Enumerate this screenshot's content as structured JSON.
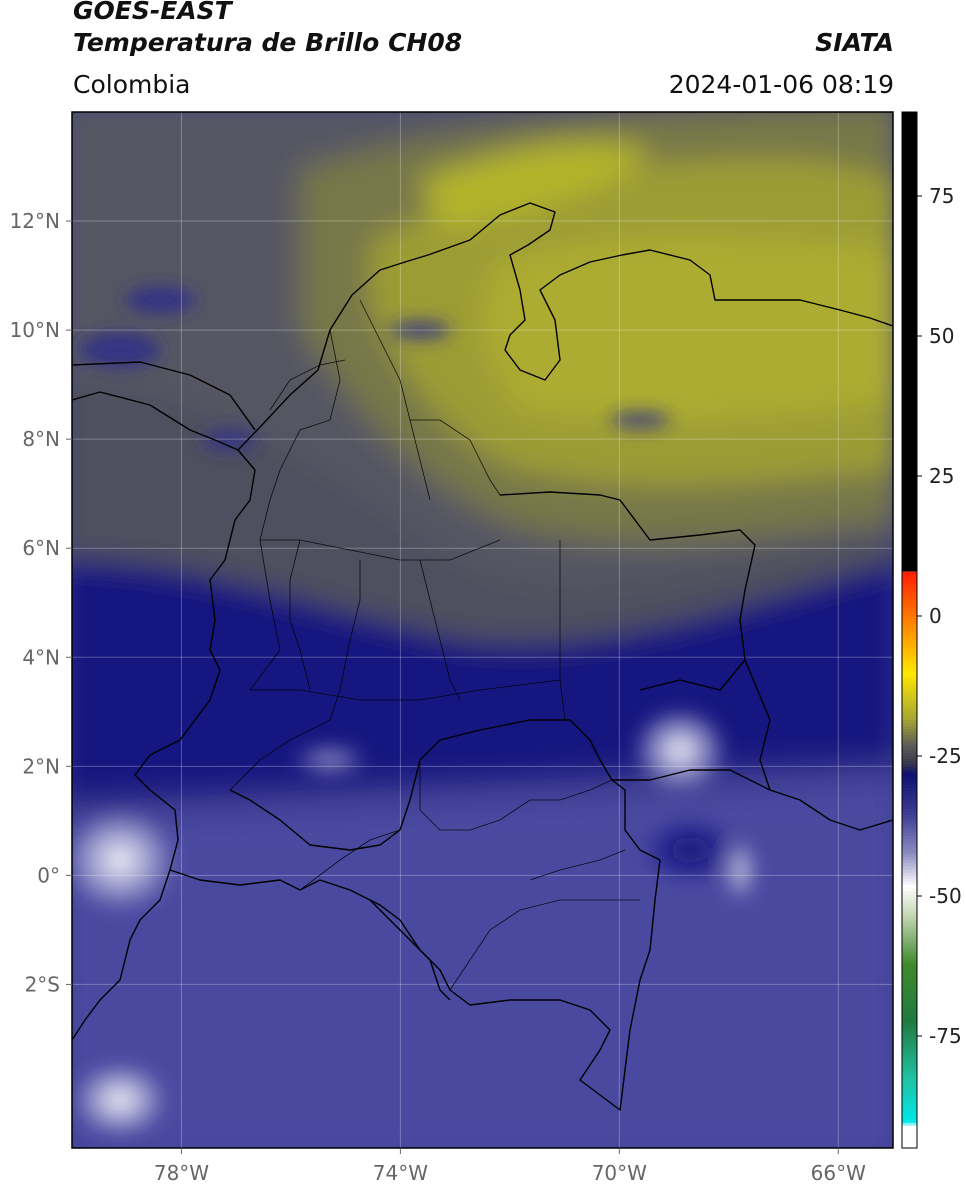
{
  "header": {
    "satellite": "GOES-EAST",
    "product": "Temperatura de Brillo CH08",
    "organization": "SIATA",
    "region": "Colombia",
    "timestamp": "2024-01-06 08:19"
  },
  "map": {
    "lon_range": [
      -80,
      -65
    ],
    "lat_range": [
      -5,
      14
    ],
    "lat_ticks": [
      {
        "value": 12,
        "label": "12°N"
      },
      {
        "value": 10,
        "label": "10°N"
      },
      {
        "value": 8,
        "label": "8°N"
      },
      {
        "value": 6,
        "label": "6°N"
      },
      {
        "value": 4,
        "label": "4°N"
      },
      {
        "value": 2,
        "label": "2°N"
      },
      {
        "value": 0,
        "label": "0°"
      },
      {
        "value": -2,
        "label": "2°S"
      }
    ],
    "lon_ticks": [
      {
        "value": -78,
        "label": "78°W"
      },
      {
        "value": -74,
        "label": "74°W"
      },
      {
        "value": -70,
        "label": "70°W"
      },
      {
        "value": -66,
        "label": "66°W"
      }
    ],
    "colors": {
      "warm_yellow": "#a8a832",
      "olive": "#6b6b48",
      "gray": "#52525e",
      "dark_navy": "#16167f",
      "blue": "#3c3c94",
      "light_blue": "#6a6aaa",
      "white": "#ffffff",
      "border": "#000000"
    }
  },
  "colorbar": {
    "range": [
      -95,
      90
    ],
    "ticks": [
      {
        "value": 75,
        "label": "75"
      },
      {
        "value": 50,
        "label": "50"
      },
      {
        "value": 25,
        "label": "25"
      },
      {
        "value": 0,
        "label": "0"
      },
      {
        "value": -25,
        "label": "-25"
      },
      {
        "value": -50,
        "label": "-50"
      },
      {
        "value": -75,
        "label": "-75"
      }
    ],
    "stops": [
      {
        "value": 90,
        "color": "#000000"
      },
      {
        "value": 8,
        "color": "#000000"
      },
      {
        "value": 7.9,
        "color": "#ff2000"
      },
      {
        "value": 0,
        "color": "#ff7a00"
      },
      {
        "value": -10,
        "color": "#ffe800"
      },
      {
        "value": -18,
        "color": "#a8a832"
      },
      {
        "value": -23,
        "color": "#5a5a5a"
      },
      {
        "value": -26,
        "color": "#3a3a4a"
      },
      {
        "value": -28,
        "color": "#101070"
      },
      {
        "value": -35,
        "color": "#3c3c94"
      },
      {
        "value": -42,
        "color": "#8a8ac0"
      },
      {
        "value": -48,
        "color": "#ffffff"
      },
      {
        "value": -53,
        "color": "#c8d8b8"
      },
      {
        "value": -62,
        "color": "#3f8a2c"
      },
      {
        "value": -72,
        "color": "#207a40"
      },
      {
        "value": -82,
        "color": "#20c0a0"
      },
      {
        "value": -90,
        "color": "#00e8e8"
      },
      {
        "value": -91,
        "color": "#ffffff"
      },
      {
        "value": -95,
        "color": "#ffffff"
      }
    ]
  }
}
